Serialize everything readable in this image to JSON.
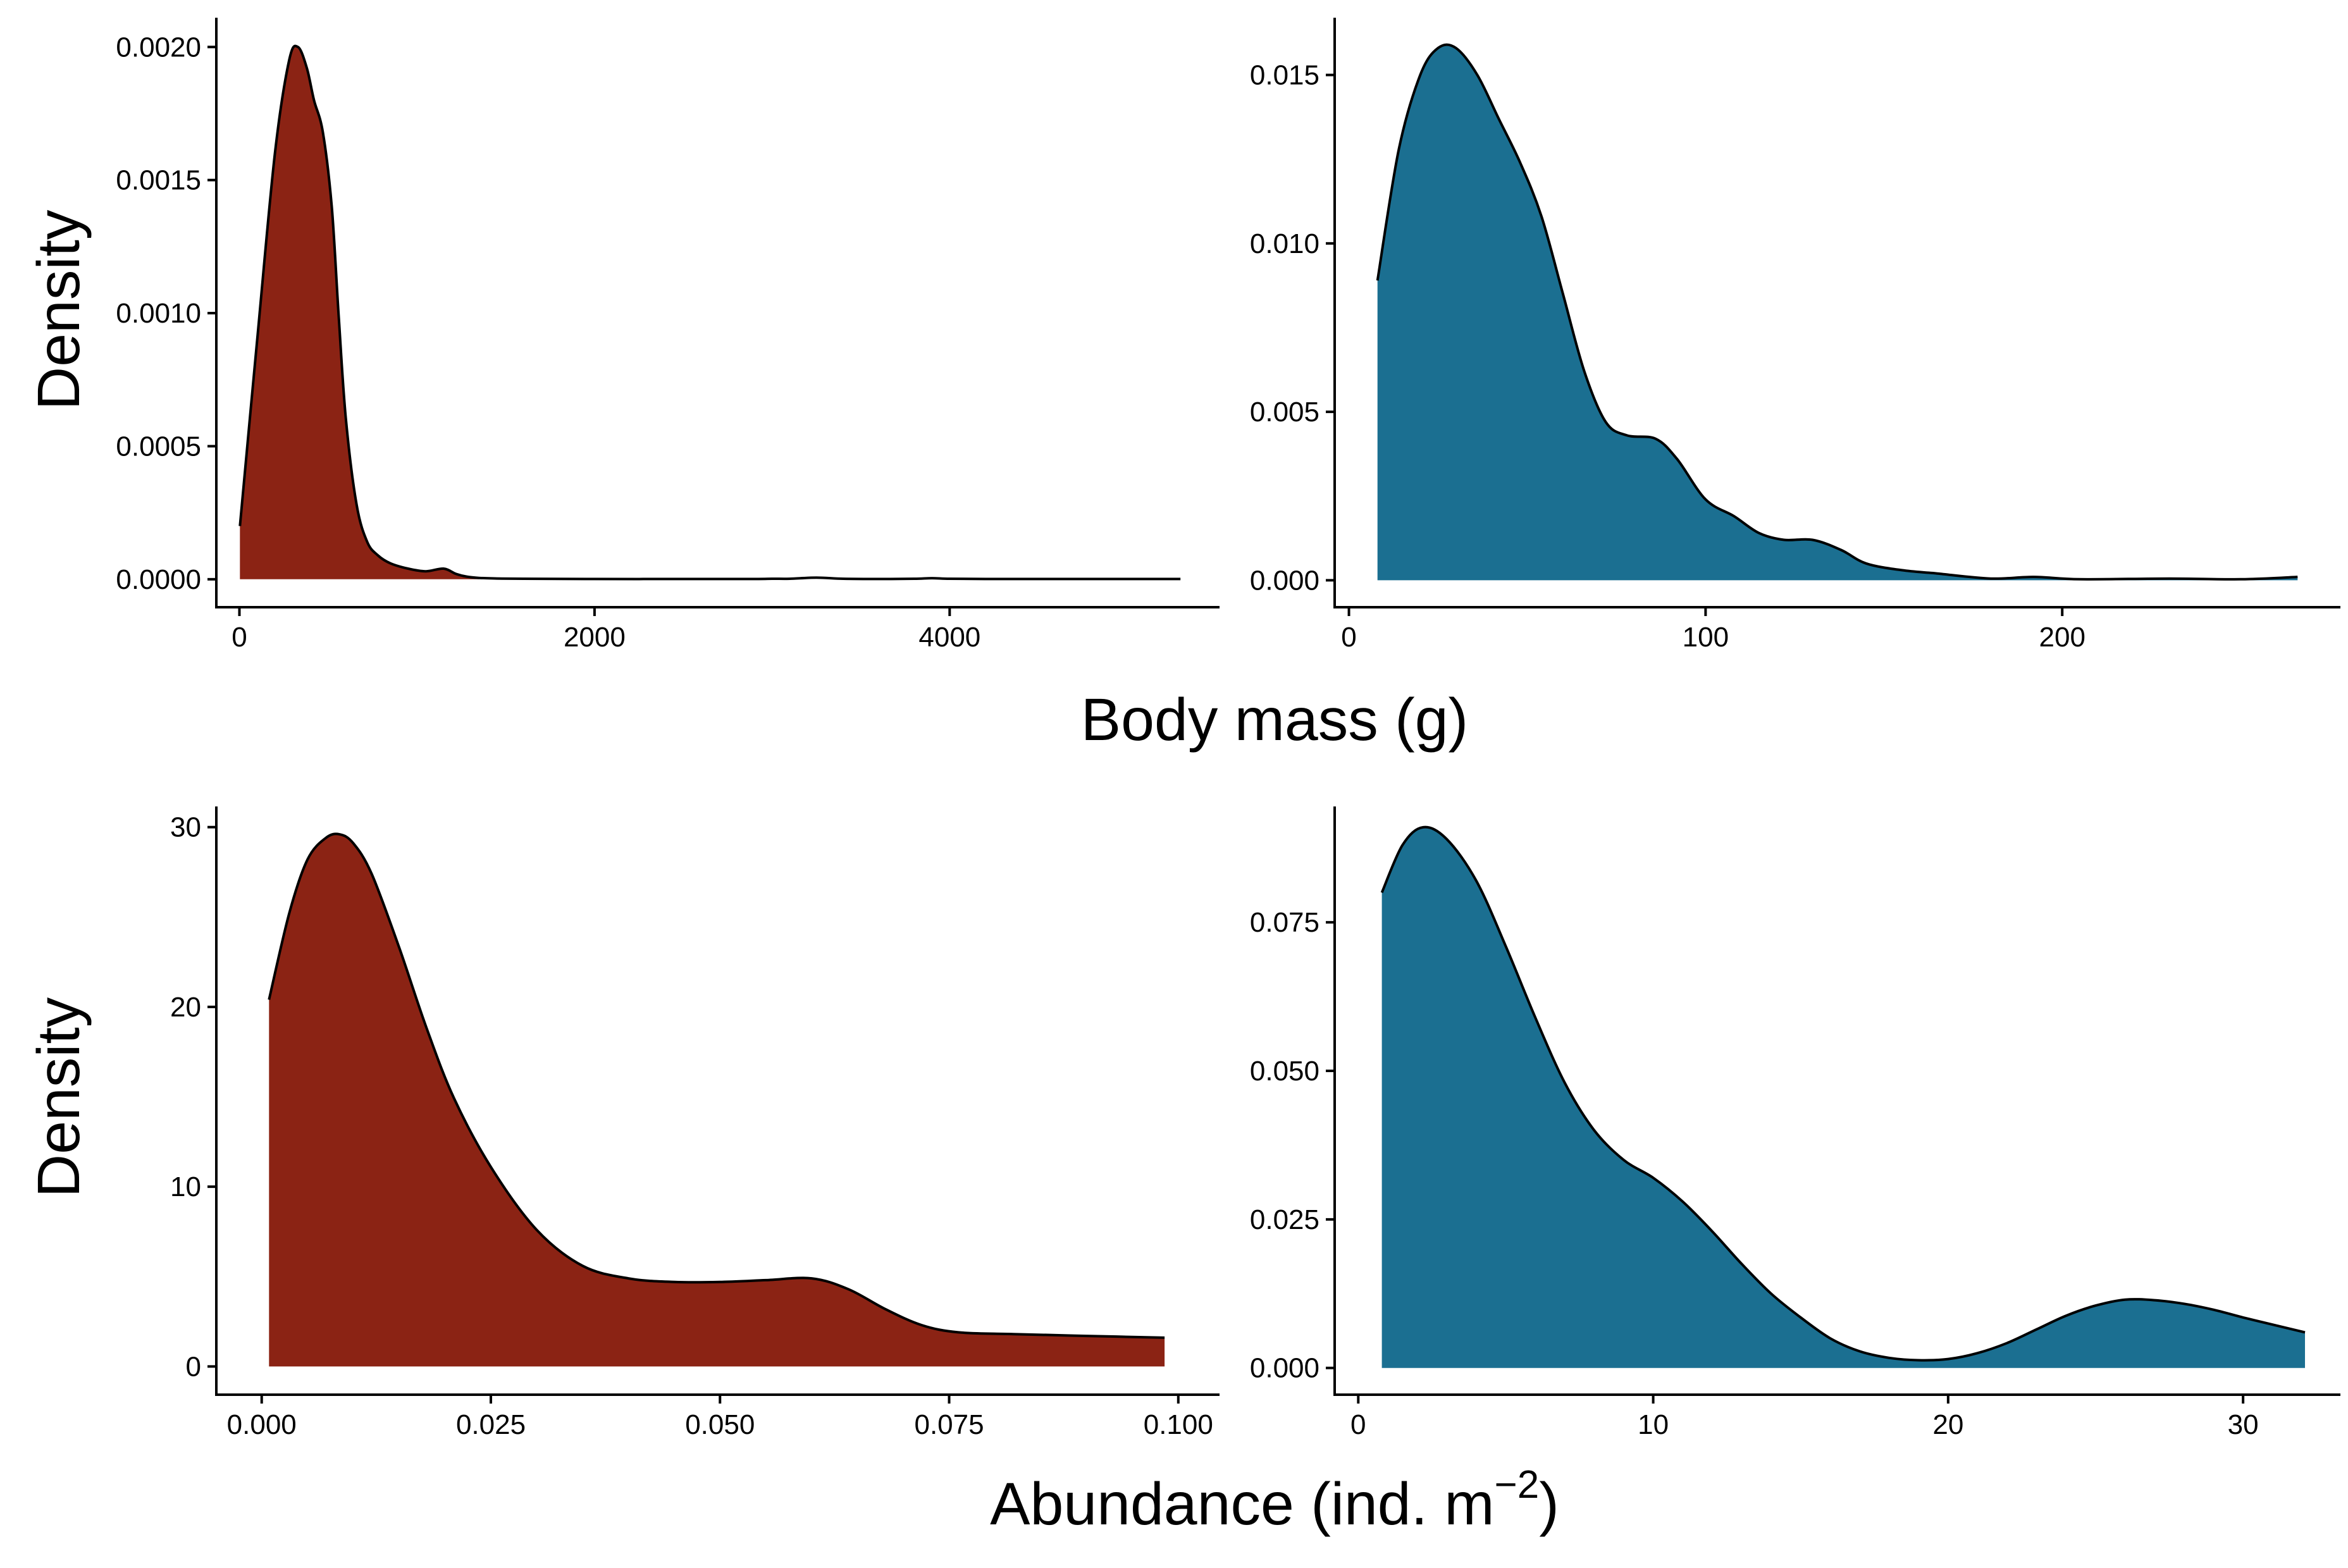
{
  "figure": {
    "ylabel_top": "Density",
    "ylabel_bottom": "Density",
    "xlabel_top": "Body mass (g)",
    "xlabel_bottom_main": "Abundance (ind. m",
    "xlabel_bottom_sup": "−2",
    "xlabel_bottom_end": ")"
  },
  "colors": {
    "left_fill": "#8B2314",
    "right_fill": "#1B6F91"
  },
  "chart_data": [
    {
      "type": "area",
      "xlabel": "Body mass (g)",
      "ylabel": "Density",
      "xlim": [
        -130,
        5520
      ],
      "ylim": [
        -0.000105,
        0.00211
      ],
      "x_ticks": [
        0,
        2000,
        4000
      ],
      "x_tick_labels": [
        "0",
        "2000",
        "4000"
      ],
      "y_ticks": [
        0,
        0.0005,
        0.001,
        0.0015,
        0.002
      ],
      "y_tick_labels": [
        "0.0000",
        "0.0005",
        "0.0010",
        "0.0015",
        "0.0020"
      ],
      "fill": "#8B2314",
      "fill_to_x": 1400,
      "x": [
        3,
        100,
        200,
        280,
        330,
        380,
        420,
        470,
        520,
        560,
        600,
        660,
        720,
        780,
        850,
        950,
        1050,
        1150,
        1220,
        1280,
        1350,
        1450,
        1600,
        2000,
        2500,
        2900,
        3000,
        3100,
        3250,
        3400,
        3600,
        3800,
        3900,
        4000,
        4200,
        4500,
        5000,
        5300
      ],
      "y": [
        0.0002,
        0.0009,
        0.0016,
        0.00195,
        0.002,
        0.00192,
        0.0018,
        0.00168,
        0.0014,
        0.00098,
        0.0006,
        0.00028,
        0.00014,
        9e-05,
        6e-05,
        4e-05,
        3e-05,
        4e-05,
        2e-05,
        1e-05,
        5e-06,
        3e-06,
        2e-06,
        1e-06,
        1e-06,
        1e-06,
        2e-06,
        2e-06,
        6e-06,
        2e-06,
        1e-06,
        2e-06,
        4e-06,
        2e-06,
        1e-06,
        1e-06,
        1e-06,
        1e-06
      ]
    },
    {
      "type": "area",
      "xlabel": "Body mass (g)",
      "ylabel": "Density",
      "xlim": [
        -4,
        278
      ],
      "ylim": [
        -0.0008,
        0.0167
      ],
      "x_ticks": [
        0,
        100,
        200
      ],
      "x_tick_labels": [
        "0",
        "100",
        "200"
      ],
      "y_ticks": [
        0,
        0.005,
        0.01,
        0.015
      ],
      "y_tick_labels": [
        "0.000",
        "0.005",
        "0.010",
        "0.015"
      ],
      "fill": "#1B6F91",
      "x": [
        8,
        14,
        20,
        25,
        30,
        36,
        42,
        48,
        54,
        60,
        66,
        72,
        78,
        86,
        92,
        100,
        108,
        115,
        122,
        130,
        138,
        145,
        155,
        165,
        180,
        192,
        205,
        230,
        250,
        266
      ],
      "y": [
        0.0089,
        0.0128,
        0.015,
        0.0158,
        0.0158,
        0.015,
        0.0137,
        0.0124,
        0.0108,
        0.0085,
        0.0062,
        0.0047,
        0.0043,
        0.0042,
        0.0036,
        0.0024,
        0.0019,
        0.0014,
        0.0012,
        0.0012,
        0.0009,
        0.0005,
        0.0003,
        0.0002,
        5e-05,
        0.0001,
        3e-05,
        5e-05,
        3e-05,
        0.0001
      ]
    },
    {
      "type": "area",
      "xlabel": "Abundance (ind. m−2)",
      "ylabel": "Density",
      "xlim": [
        -0.00495,
        0.1045
      ],
      "ylim": [
        -1.57,
        31.15
      ],
      "x_ticks": [
        0,
        0.025,
        0.05,
        0.075,
        0.1
      ],
      "x_tick_labels": [
        "0.000",
        "0.025",
        "0.050",
        "0.075",
        "0.100"
      ],
      "y_ticks": [
        0,
        10,
        20,
        30
      ],
      "y_tick_labels": [
        "0",
        "10",
        "20",
        "30"
      ],
      "fill": "#8B2314",
      "x": [
        0.0008,
        0.003,
        0.005,
        0.007,
        0.0085,
        0.01,
        0.012,
        0.015,
        0.018,
        0.021,
        0.025,
        0.03,
        0.035,
        0.04,
        0.045,
        0.05,
        0.055,
        0.06,
        0.064,
        0.068,
        0.072,
        0.076,
        0.082,
        0.09,
        0.0985
      ],
      "y": [
        20.4,
        25.2,
        28.2,
        29.4,
        29.6,
        29.1,
        27.4,
        23.3,
        18.8,
        14.9,
        11.1,
        7.6,
        5.6,
        4.9,
        4.7,
        4.7,
        4.8,
        4.9,
        4.3,
        3.2,
        2.3,
        1.9,
        1.8,
        1.7,
        1.6
      ]
    },
    {
      "type": "area",
      "xlabel": "Abundance (ind. m−2)",
      "ylabel": "Density",
      "xlim": [
        -0.8,
        33.3
      ],
      "ylim": [
        -0.0045,
        0.0945
      ],
      "x_ticks": [
        0,
        10,
        20,
        30
      ],
      "x_tick_labels": [
        "0",
        "10",
        "20",
        "30"
      ],
      "y_ticks": [
        0,
        0.025,
        0.05,
        0.075
      ],
      "y_tick_labels": [
        "0.000",
        "0.025",
        "0.050",
        "0.075"
      ],
      "fill": "#1B6F91",
      "x": [
        0.8,
        1.5,
        2.2,
        3,
        4,
        5,
        6,
        7,
        8,
        9,
        10,
        11,
        12,
        13,
        14,
        15,
        16,
        17,
        18,
        19,
        20,
        21,
        22,
        23,
        24,
        25,
        26,
        27,
        28,
        29,
        30,
        31,
        32.1
      ],
      "y": [
        0.08,
        0.088,
        0.091,
        0.089,
        0.082,
        0.071,
        0.059,
        0.048,
        0.04,
        0.035,
        0.032,
        0.028,
        0.023,
        0.0175,
        0.0125,
        0.0085,
        0.005,
        0.0028,
        0.0017,
        0.0013,
        0.0015,
        0.0025,
        0.0042,
        0.0065,
        0.0088,
        0.0105,
        0.0115,
        0.0114,
        0.0108,
        0.0098,
        0.0085,
        0.0073,
        0.006
      ]
    }
  ]
}
